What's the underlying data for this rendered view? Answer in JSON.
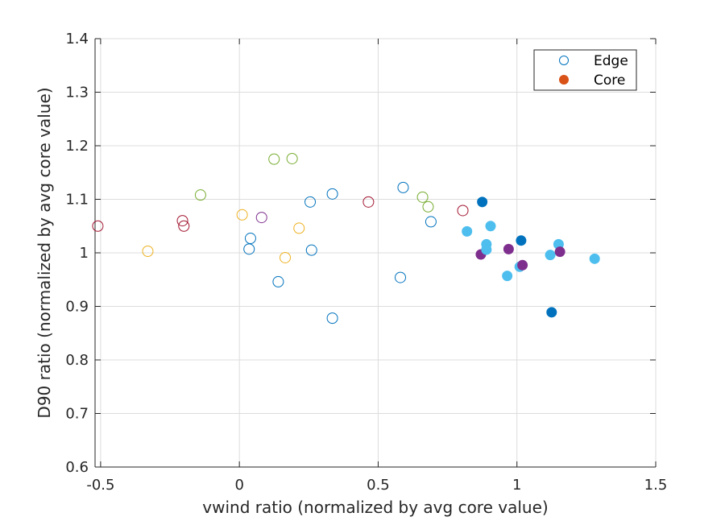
{
  "chart_data": {
    "type": "scatter",
    "xlabel": "vwind ratio (normalized by avg core value)",
    "ylabel": "D90 ratio (normalized by avg core value)",
    "xlim": [
      -0.52,
      1.5
    ],
    "ylim": [
      0.6,
      1.4
    ],
    "x_ticks": [
      -0.5,
      0,
      0.5,
      1,
      1.5
    ],
    "x_tick_labels": [
      "-0.5",
      "0",
      "0.5",
      "1",
      "1.5"
    ],
    "y_ticks": [
      0.6,
      0.7,
      0.8,
      0.9,
      1.0,
      1.1,
      1.2,
      1.3,
      1.4
    ],
    "y_tick_labels": [
      "0.6",
      "0.7",
      "0.8",
      "0.9",
      "1",
      "1.1",
      "1.2",
      "1.3",
      "1.4"
    ],
    "grid": true,
    "legend_position": "top-right",
    "legend": [
      {
        "name": "Edge",
        "marker": "open-circle",
        "color": "#0072bd"
      },
      {
        "name": "Core",
        "marker": "filled-circle",
        "color": "#d95319"
      }
    ],
    "series": [
      {
        "name": "Edge",
        "filled": false,
        "points": [
          {
            "x": -0.51,
            "y": 1.05,
            "color": "#a2142f"
          },
          {
            "x": -0.33,
            "y": 1.003,
            "color": "#edb120"
          },
          {
            "x": -0.205,
            "y": 1.06,
            "color": "#a2142f"
          },
          {
            "x": -0.2,
            "y": 1.05,
            "color": "#a2142f"
          },
          {
            "x": -0.14,
            "y": 1.108,
            "color": "#77ac30"
          },
          {
            "x": 0.01,
            "y": 1.071,
            "color": "#edb120"
          },
          {
            "x": 0.035,
            "y": 1.007,
            "color": "#0072bd"
          },
          {
            "x": 0.04,
            "y": 1.027,
            "color": "#0072bd"
          },
          {
            "x": 0.08,
            "y": 1.066,
            "color": "#7e2f8e"
          },
          {
            "x": 0.125,
            "y": 1.175,
            "color": "#77ac30"
          },
          {
            "x": 0.14,
            "y": 0.946,
            "color": "#0072bd"
          },
          {
            "x": 0.165,
            "y": 0.991,
            "color": "#edb120"
          },
          {
            "x": 0.19,
            "y": 1.176,
            "color": "#77ac30"
          },
          {
            "x": 0.215,
            "y": 1.046,
            "color": "#edb120"
          },
          {
            "x": 0.255,
            "y": 1.095,
            "color": "#0072bd"
          },
          {
            "x": 0.26,
            "y": 1.005,
            "color": "#0072bd"
          },
          {
            "x": 0.335,
            "y": 1.11,
            "color": "#0072bd"
          },
          {
            "x": 0.335,
            "y": 0.878,
            "color": "#0072bd"
          },
          {
            "x": 0.465,
            "y": 1.095,
            "color": "#a2142f"
          },
          {
            "x": 0.58,
            "y": 0.954,
            "color": "#0072bd"
          },
          {
            "x": 0.59,
            "y": 1.122,
            "color": "#0072bd"
          },
          {
            "x": 0.66,
            "y": 1.104,
            "color": "#77ac30"
          },
          {
            "x": 0.68,
            "y": 1.086,
            "color": "#77ac30"
          },
          {
            "x": 0.69,
            "y": 1.058,
            "color": "#0072bd"
          },
          {
            "x": 0.805,
            "y": 1.079,
            "color": "#a2142f"
          }
        ]
      },
      {
        "name": "Core",
        "filled": true,
        "points": [
          {
            "x": 0.82,
            "y": 1.04,
            "color": "#4dbeee"
          },
          {
            "x": 0.87,
            "y": 0.997,
            "color": "#7e2f8e"
          },
          {
            "x": 0.875,
            "y": 1.095,
            "color": "#0072bd"
          },
          {
            "x": 0.89,
            "y": 1.016,
            "color": "#4dbeee"
          },
          {
            "x": 0.89,
            "y": 1.006,
            "color": "#4dbeee"
          },
          {
            "x": 0.905,
            "y": 1.05,
            "color": "#4dbeee"
          },
          {
            "x": 0.965,
            "y": 0.957,
            "color": "#4dbeee"
          },
          {
            "x": 0.97,
            "y": 1.007,
            "color": "#7e2f8e"
          },
          {
            "x": 1.01,
            "y": 0.974,
            "color": "#4dbeee"
          },
          {
            "x": 1.015,
            "y": 1.023,
            "color": "#0072bd"
          },
          {
            "x": 1.02,
            "y": 0.977,
            "color": "#7e2f8e"
          },
          {
            "x": 1.12,
            "y": 0.996,
            "color": "#4dbeee"
          },
          {
            "x": 1.125,
            "y": 0.889,
            "color": "#0072bd"
          },
          {
            "x": 1.15,
            "y": 1.016,
            "color": "#4dbeee"
          },
          {
            "x": 1.155,
            "y": 1.002,
            "color": "#7e2f8e"
          },
          {
            "x": 1.28,
            "y": 0.989,
            "color": "#4dbeee"
          }
        ]
      }
    ]
  }
}
